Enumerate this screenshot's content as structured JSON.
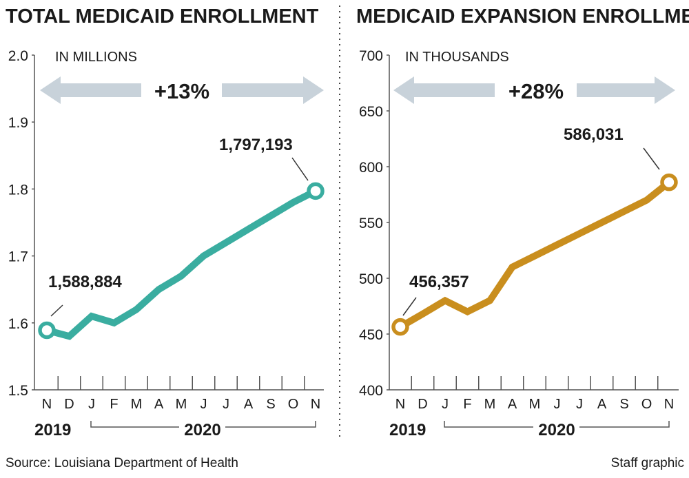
{
  "colors": {
    "total": "#3aada0",
    "expansion": "#c98e1e",
    "arrow": "#c8d2da",
    "axis": "#555555"
  },
  "footer": {
    "source": "Source: Louisiana Department of Health",
    "credit": "Staff graphic"
  },
  "chart_data": [
    {
      "type": "line",
      "title": "TOTAL MEDICAID ENROLLMENT",
      "unit_label": "IN MILLIONS",
      "change_label": "+13%",
      "categories": [
        "N",
        "D",
        "J",
        "F",
        "M",
        "A",
        "M",
        "J",
        "J",
        "A",
        "S",
        "O",
        "N"
      ],
      "year_labels": [
        "2019",
        "2020"
      ],
      "yticks": [
        "2.0",
        "1.9",
        "1.8",
        "1.7",
        "1.6",
        "1.5"
      ],
      "ylim": [
        1.5,
        2.0
      ],
      "series": [
        {
          "name": "Total Medicaid enrollment",
          "values": [
            1.589,
            1.58,
            1.61,
            1.6,
            1.62,
            1.65,
            1.67,
            1.7,
            1.72,
            1.74,
            1.76,
            1.78,
            1.797
          ]
        }
      ],
      "start_label": "1,588,884",
      "end_label": "1,797,193"
    },
    {
      "type": "line",
      "title": "MEDICAID EXPANSION ENROLLMENT",
      "unit_label": "IN THOUSANDS",
      "change_label": "+28%",
      "categories": [
        "N",
        "D",
        "J",
        "F",
        "M",
        "A",
        "M",
        "J",
        "J",
        "A",
        "S",
        "O",
        "N"
      ],
      "year_labels": [
        "2019",
        "2020"
      ],
      "yticks": [
        "700",
        "650",
        "600",
        "550",
        "500",
        "450",
        "400"
      ],
      "ylim": [
        400,
        700
      ],
      "series": [
        {
          "name": "Medicaid expansion enrollment",
          "values": [
            456.4,
            468,
            480,
            470,
            480,
            510,
            520,
            530,
            540,
            550,
            560,
            570,
            586.0
          ]
        }
      ],
      "start_label": "456,357",
      "end_label": "586,031"
    }
  ]
}
